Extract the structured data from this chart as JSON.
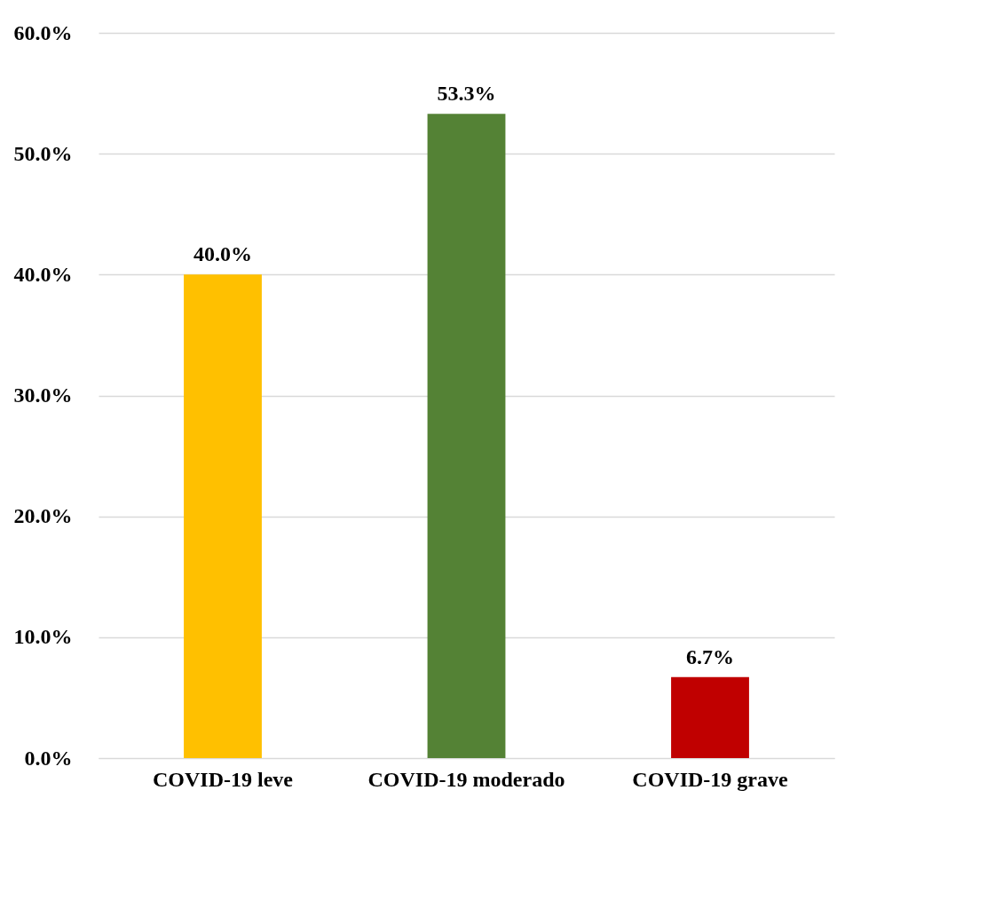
{
  "chart_data": {
    "type": "bar",
    "categories": [
      "COVID-19 leve",
      "COVID-19 moderado",
      "COVID-19 grave"
    ],
    "values": [
      40.0,
      53.3,
      6.7
    ],
    "colors": [
      "#ffc000",
      "#548235",
      "#c00000"
    ],
    "value_labels": [
      "40.0%",
      "53.3%",
      "6.7%"
    ],
    "ylim": [
      0,
      60
    ],
    "yticks": [
      {
        "value": 0,
        "label": "0.0%"
      },
      {
        "value": 10,
        "label": "10.0%"
      },
      {
        "value": 20,
        "label": "20.0%"
      },
      {
        "value": 30,
        "label": "30.0%"
      },
      {
        "value": 40,
        "label": "40.0%"
      },
      {
        "value": 50,
        "label": "50.0%"
      },
      {
        "value": 60,
        "label": "60.0%"
      }
    ],
    "grid": "y"
  }
}
